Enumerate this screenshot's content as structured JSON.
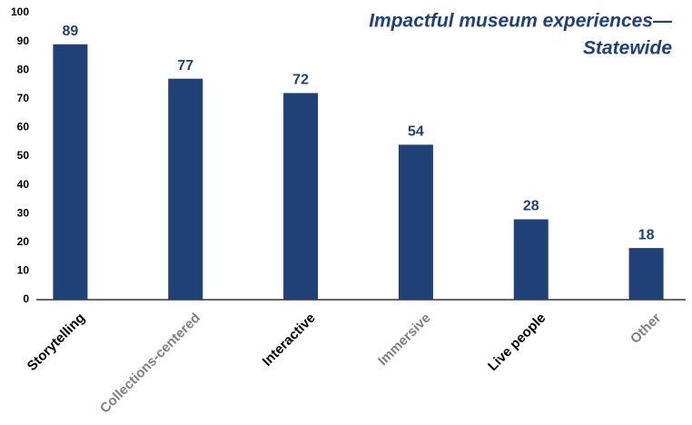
{
  "chart_data": {
    "type": "bar",
    "title": [
      "Impactful museum experiences—",
      "Statewide"
    ],
    "categories": [
      "Storytelling",
      "Collections-centered",
      "Interactive",
      "Immersive",
      "Live people",
      "Other"
    ],
    "category_label_colors": [
      "#000000",
      "#808080",
      "#000000",
      "#808080",
      "#000000",
      "#808080"
    ],
    "values": [
      89,
      77,
      72,
      54,
      28,
      18
    ],
    "color": "#1f4177",
    "ylim": [
      0,
      100
    ],
    "yticks": [
      0,
      10,
      20,
      30,
      40,
      50,
      60,
      70,
      80,
      90,
      100
    ],
    "grid": false
  }
}
